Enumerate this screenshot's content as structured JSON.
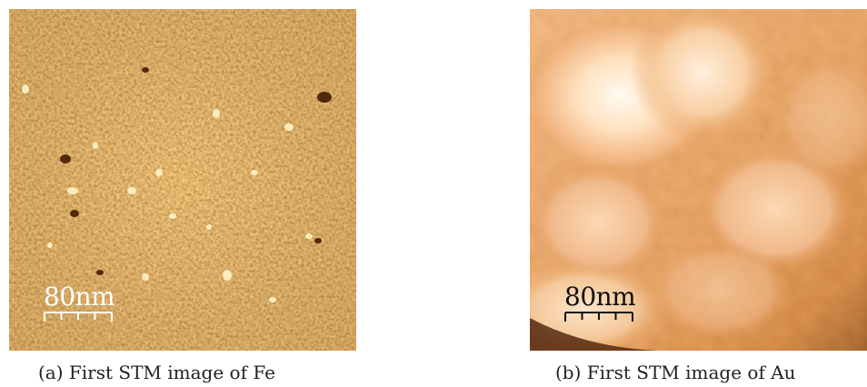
{
  "figure": {
    "panels": [
      {
        "scalebar_label": "80nm",
        "caption": "(a) First STM image of Fe"
      },
      {
        "scalebar_label": "80nm",
        "caption": "(b) First STM image of Au"
      }
    ],
    "colors": {
      "fe_base": "#d07a1e",
      "au_base": "#e8a66a",
      "scalebar_fe": "#ffffff",
      "scalebar_au": "#111111"
    }
  }
}
